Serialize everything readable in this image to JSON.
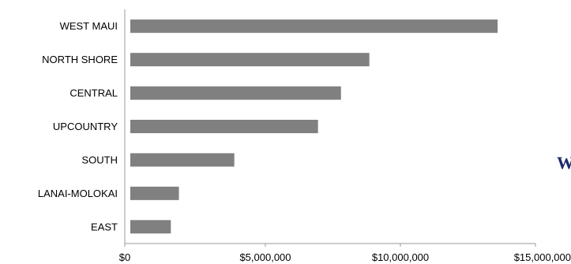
{
  "chart_data": {
    "type": "bar",
    "orientation": "horizontal",
    "categories": [
      "WEST MAUI",
      "NORTH SHORE",
      "CENTRAL",
      "UPCOUNTRY",
      "SOUTH",
      "LANAI-MOLOKAI",
      "EAST"
    ],
    "values": [
      13600000,
      8850000,
      7800000,
      6950000,
      3850000,
      1800000,
      1500000
    ],
    "xlim": [
      0,
      15000000
    ],
    "ticks": [
      0,
      5000000,
      10000000,
      15000000
    ],
    "tick_labels": [
      "$0",
      "$5,000,000",
      "$10,000,000",
      "$15,000,000"
    ],
    "title": "",
    "xlabel": "",
    "ylabel": "",
    "bar_color": "#808080",
    "grid": false,
    "legend": "none"
  },
  "side_text": "W"
}
